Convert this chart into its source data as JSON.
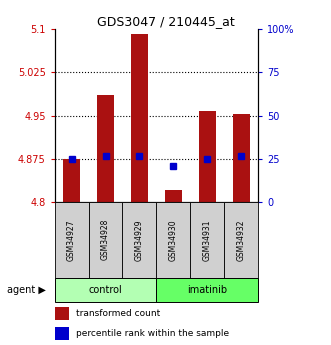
{
  "title": "GDS3047 / 210445_at",
  "samples": [
    "GSM34927",
    "GSM34928",
    "GSM34929",
    "GSM34930",
    "GSM34931",
    "GSM34932"
  ],
  "red_values": [
    4.875,
    4.985,
    5.092,
    4.82,
    4.958,
    4.952
  ],
  "blue_values_left": [
    4.875,
    4.879,
    4.879,
    4.863,
    4.875,
    4.879
  ],
  "y_min": 4.8,
  "y_max": 5.1,
  "y_ticks_left": [
    4.8,
    4.875,
    4.95,
    5.025,
    5.1
  ],
  "y_ticks_right": [
    0,
    25,
    50,
    75,
    100
  ],
  "groups": [
    {
      "label": "control",
      "indices": [
        0,
        1,
        2
      ],
      "color": "#b3ffb3"
    },
    {
      "label": "imatinib",
      "indices": [
        3,
        4,
        5
      ],
      "color": "#66ff66"
    }
  ],
  "bar_color": "#aa1111",
  "blue_color": "#0000cc",
  "bar_width": 0.5,
  "background_color": "#ffffff",
  "tick_label_color_left": "#cc0000",
  "tick_label_color_right": "#0000cc",
  "right_tick_labels": [
    "0",
    "25",
    "50",
    "75",
    "100%"
  ]
}
